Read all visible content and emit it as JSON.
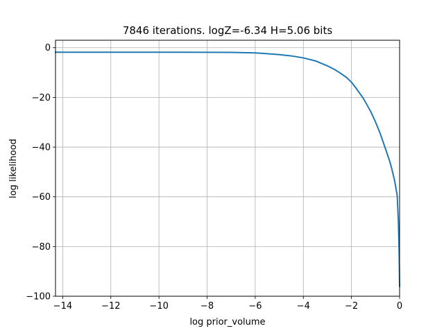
{
  "chart_data": {
    "type": "line",
    "title": "7846 iterations. logZ=-6.34 H=5.06 bits",
    "xlabel": "log prior_volume",
    "ylabel": "log likelihood",
    "xlim": [
      -14.3,
      0
    ],
    "ylim": [
      -100,
      3
    ],
    "grid": true,
    "xticks": [
      -14,
      -12,
      -10,
      -8,
      -6,
      -4,
      -2,
      0
    ],
    "xtick_labels": [
      "−14",
      "−12",
      "−10",
      "−8",
      "−6",
      "−4",
      "−2",
      "0"
    ],
    "yticks": [
      0,
      -20,
      -40,
      -60,
      -80,
      -100
    ],
    "ytick_labels": [
      "0",
      "−20",
      "−40",
      "−60",
      "−80",
      "−100"
    ],
    "series": [
      {
        "color": "#1f77b4",
        "x": [
          -14.3,
          -12,
          -10,
          -8,
          -7,
          -6,
          -5.5,
          -5,
          -4.5,
          -4,
          -3.5,
          -3,
          -2.7,
          -2.5,
          -2.2,
          -2,
          -1.8,
          -1.5,
          -1.2,
          -1,
          -0.8,
          -0.6,
          -0.4,
          -0.3,
          -0.2,
          -0.1,
          -0.05,
          -0.02,
          0
        ],
        "y": [
          -1.8,
          -1.8,
          -1.8,
          -1.85,
          -1.9,
          -2.1,
          -2.4,
          -2.8,
          -3.3,
          -4.1,
          -5.3,
          -7.3,
          -8.8,
          -10.0,
          -12.0,
          -13.9,
          -16.4,
          -20.5,
          -25.7,
          -29.9,
          -34.7,
          -40.3,
          -46.0,
          -49.7,
          -53.8,
          -59.5,
          -70.0,
          -82.0,
          -96.0
        ]
      }
    ]
  }
}
